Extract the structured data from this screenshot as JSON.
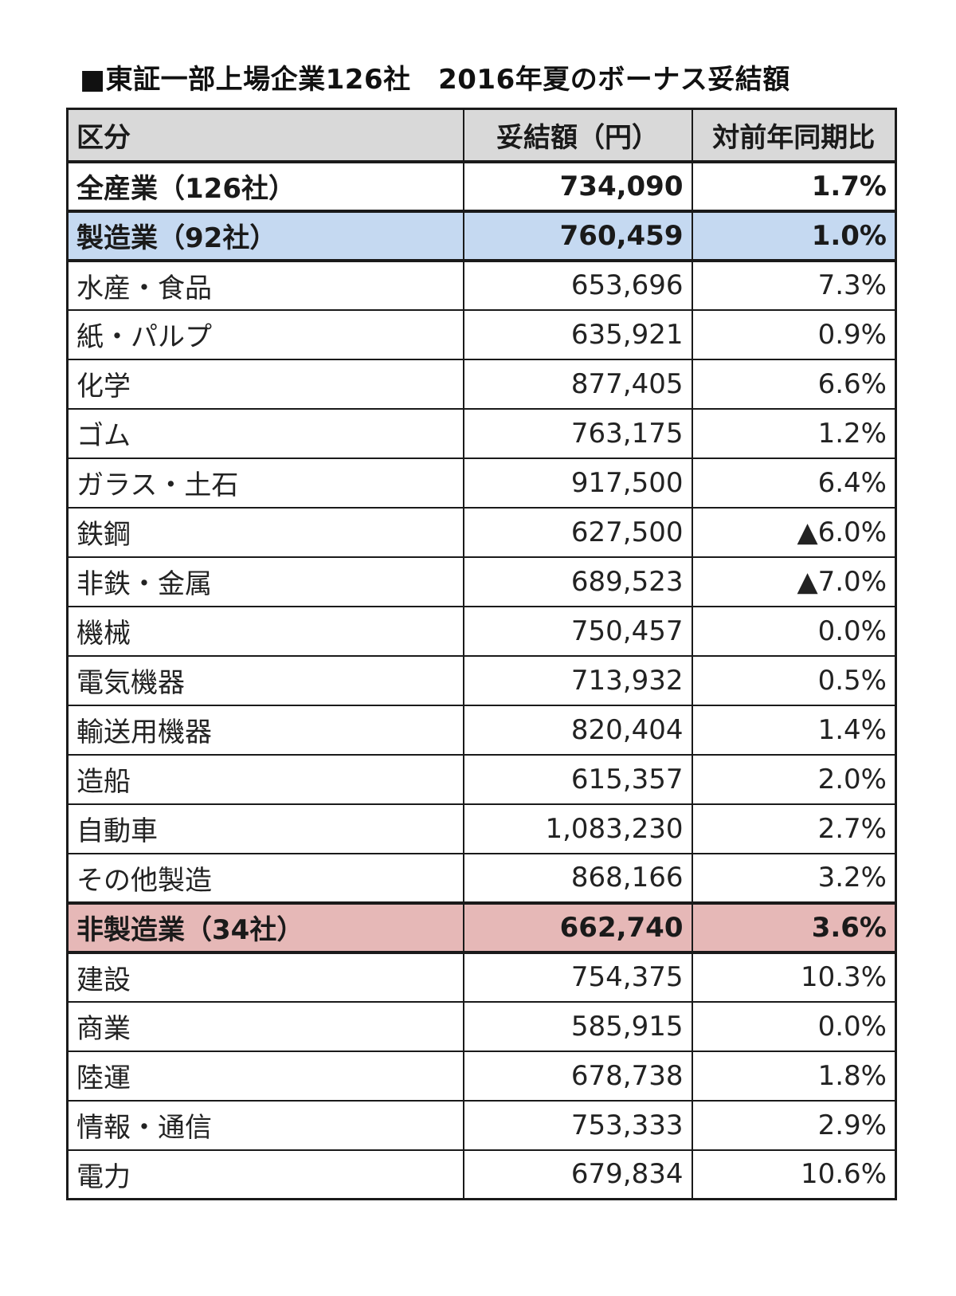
{
  "title": "■東証一部上場企業126社　2016年夏のボーナス妥結額",
  "table": {
    "headers": {
      "category": "区分",
      "amount": "妥結額（円）",
      "yoy": "対前年同期比"
    },
    "rows": [
      {
        "type": "total",
        "indent": 0,
        "category": "全産業（126社）",
        "amount": "734,090",
        "yoy": "1.7%"
      },
      {
        "type": "manu",
        "indent": 0,
        "category": "製造業（92社）",
        "amount": "760,459",
        "yoy": "1.0%"
      },
      {
        "type": "item",
        "indent": 1,
        "category": "水産・食品",
        "amount": "653,696",
        "yoy": "7.3%"
      },
      {
        "type": "item",
        "indent": 1,
        "category": "紙・パルプ",
        "amount": "635,921",
        "yoy": "0.9%"
      },
      {
        "type": "item",
        "indent": 1,
        "category": "化学",
        "amount": "877,405",
        "yoy": "6.6%"
      },
      {
        "type": "item",
        "indent": 1,
        "category": "ゴム",
        "amount": "763,175",
        "yoy": "1.2%"
      },
      {
        "type": "item",
        "indent": 1,
        "category": "ガラス・土石",
        "amount": "917,500",
        "yoy": "6.4%"
      },
      {
        "type": "item",
        "indent": 1,
        "category": "鉄鋼",
        "amount": "627,500",
        "yoy": "▲6.0%"
      },
      {
        "type": "item",
        "indent": 1,
        "category": "非鉄・金属",
        "amount": "689,523",
        "yoy": "▲7.0%"
      },
      {
        "type": "item",
        "indent": 1,
        "category": "機械",
        "amount": "750,457",
        "yoy": "0.0%"
      },
      {
        "type": "item",
        "indent": 1,
        "category": "電気機器",
        "amount": "713,932",
        "yoy": "0.5%"
      },
      {
        "type": "item",
        "indent": 1,
        "category": "輸送用機器",
        "amount": "820,404",
        "yoy": "1.4%"
      },
      {
        "type": "item",
        "indent": 2,
        "category": "造船",
        "amount": "615,357",
        "yoy": "2.0%"
      },
      {
        "type": "item",
        "indent": 2,
        "category": "自動車",
        "amount": "1,083,230",
        "yoy": "2.7%"
      },
      {
        "type": "item",
        "indent": 1,
        "category": "その他製造",
        "amount": "868,166",
        "yoy": "3.2%"
      },
      {
        "type": "nonmanu",
        "indent": 0,
        "category": "非製造業（34社）",
        "amount": "662,740",
        "yoy": "3.6%"
      },
      {
        "type": "item",
        "indent": 1,
        "category": "建設",
        "amount": "754,375",
        "yoy": "10.3%"
      },
      {
        "type": "item",
        "indent": 1,
        "category": "商業",
        "amount": "585,915",
        "yoy": "0.0%"
      },
      {
        "type": "item",
        "indent": 1,
        "category": "陸運",
        "amount": "678,738",
        "yoy": "1.8%"
      },
      {
        "type": "item",
        "indent": 1,
        "category": "情報・通信",
        "amount": "753,333",
        "yoy": "2.9%"
      },
      {
        "type": "item",
        "indent": 1,
        "category": "電力",
        "amount": "679,834",
        "yoy": "10.6%"
      }
    ]
  },
  "colors": {
    "header_bg": "#d9d9d9",
    "manufacturing_bg": "#c5d9f1",
    "non_manufacturing_bg": "#e6b8b7",
    "border": "#1a1a1a"
  }
}
